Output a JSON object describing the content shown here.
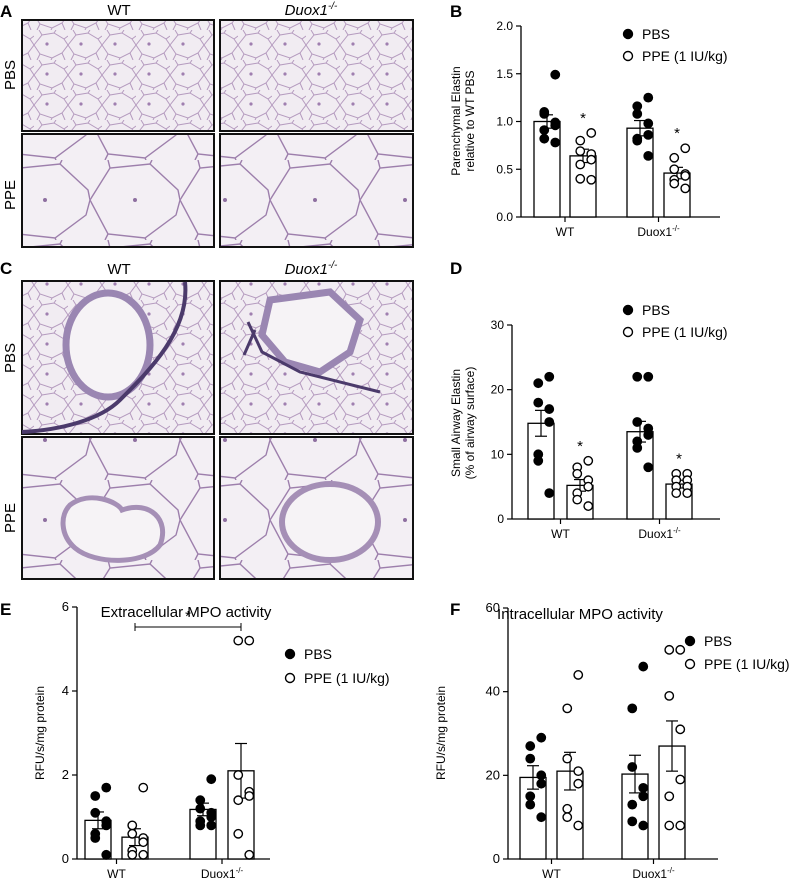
{
  "panels": {
    "A": {
      "letter": "A",
      "col1": "WT",
      "col2_main": "Duox1",
      "col2_sup": "-/-",
      "row1": "PBS",
      "row2": "PPE"
    },
    "C": {
      "letter": "C",
      "col1": "WT",
      "col2_main": "Duox1",
      "col2_sup": "-/-",
      "row1": "PBS",
      "row2": "PPE"
    }
  },
  "chart_data": [
    {
      "panel": "B",
      "type": "bar",
      "ylabel": "Parenchymal Elastin\nrelative to WT PBS",
      "ylim": [
        0,
        2.0
      ],
      "yticks": [
        "0.0",
        "0.5",
        "1.0",
        "1.5",
        "2.0"
      ],
      "groups": [
        {
          "main": "WT",
          "sup": ""
        },
        {
          "main": "Duox1",
          "sup": "-/-"
        }
      ],
      "legend": [
        "PBS",
        "PPE (1 IU/kg)"
      ],
      "series": [
        {
          "name": "PBS",
          "means": [
            1.0,
            0.93
          ],
          "sems": [
            0.07,
            0.08
          ],
          "points": [
            [
              1.49,
              1.1,
              1.08,
              0.99,
              0.96,
              0.91,
              0.82,
              0.78
            ],
            [
              1.25,
              1.16,
              1.08,
              0.98,
              0.86,
              0.82,
              0.8,
              0.64
            ]
          ]
        },
        {
          "name": "PPE (1 IU/kg)",
          "means": [
            0.64,
            0.46
          ],
          "sems": [
            0.07,
            0.06
          ],
          "points": [
            [
              0.88,
              0.8,
              0.69,
              0.66,
              0.6,
              0.55,
              0.4,
              0.39
            ],
            [
              0.72,
              0.62,
              0.5,
              0.45,
              0.43,
              0.39,
              0.35,
              0.3
            ]
          ]
        }
      ],
      "significance": [
        "*",
        "*"
      ]
    },
    {
      "panel": "D",
      "type": "bar",
      "ylabel": "Small Airway Elastin\n(% of airway surface)",
      "ylim": [
        0,
        30
      ],
      "yticks": [
        "0",
        "10",
        "20",
        "30"
      ],
      "groups": [
        {
          "main": "WT",
          "sup": ""
        },
        {
          "main": "Duox1",
          "sup": "-/-"
        }
      ],
      "legend": [
        "PBS",
        "PPE (1 IU/kg)"
      ],
      "series": [
        {
          "name": "PBS",
          "means": [
            14.8,
            13.5
          ],
          "sems": [
            2.0,
            1.6
          ],
          "points": [
            [
              22,
              21,
              18,
              17,
              15,
              10,
              9,
              4
            ],
            [
              22,
              22,
              15,
              14,
              13,
              12,
              11,
              8
            ]
          ]
        },
        {
          "name": "PPE (1 IU/kg)",
          "means": [
            5.2,
            5.4
          ],
          "sems": [
            0.9,
            0.6
          ],
          "points": [
            [
              9,
              8,
              7,
              6,
              5,
              4,
              3,
              2
            ],
            [
              7,
              7,
              6,
              6,
              5,
              5,
              4,
              4
            ]
          ]
        }
      ],
      "significance": [
        "*",
        "*"
      ]
    },
    {
      "panel": "E",
      "type": "bar",
      "title": "Extracellular MPO activity",
      "ylabel": "RFU/s/mg protein",
      "ylim": [
        0,
        6
      ],
      "yticks": [
        "0",
        "2",
        "4",
        "6"
      ],
      "groups": [
        {
          "main": "WT",
          "sup": ""
        },
        {
          "main": "Duox1",
          "sup": "-/-"
        }
      ],
      "legend": [
        "PBS",
        "PPE (1 IU/kg)"
      ],
      "series": [
        {
          "name": "PBS",
          "means": [
            0.92,
            1.18
          ],
          "sems": [
            0.2,
            0.15
          ],
          "points": [
            [
              1.7,
              1.5,
              1.1,
              0.9,
              0.8,
              0.6,
              0.5,
              0.1
            ],
            [
              1.9,
              1.4,
              1.2,
              1.1,
              1.0,
              0.9,
              0.8,
              0.8
            ]
          ]
        },
        {
          "name": "PPE (1 IU/kg)",
          "means": [
            0.52,
            2.1
          ],
          "sems": [
            0.2,
            0.65
          ],
          "points": [
            [
              1.7,
              0.8,
              0.6,
              0.5,
              0.4,
              0.2,
              0.1,
              0.1
            ],
            [
              5.2,
              5.2,
              2.0,
              1.6,
              1.5,
              1.4,
              0.6,
              0.1
            ]
          ]
        }
      ],
      "bracket": {
        "from": "WT PPE",
        "to": "Duox1 PPE",
        "label": "*"
      }
    },
    {
      "panel": "F",
      "type": "bar",
      "title": "Intracellular MPO activity",
      "ylabel": "RFU/s/mg protein",
      "ylim": [
        0,
        60
      ],
      "yticks": [
        "0",
        "20",
        "40",
        "60"
      ],
      "groups": [
        {
          "main": "WT",
          "sup": ""
        },
        {
          "main": "Duox1",
          "sup": "-/-"
        }
      ],
      "legend": [
        "PBS",
        "PPE (1 IU/kg)"
      ],
      "series": [
        {
          "name": "PBS",
          "means": [
            19.5,
            20.3
          ],
          "sems": [
            2.8,
            4.5
          ],
          "points": [
            [
              29,
              27,
              24,
              20,
              18,
              15,
              13,
              10
            ],
            [
              46,
              36,
              22,
              17,
              15,
              13,
              9,
              8
            ]
          ]
        },
        {
          "name": "PPE (1 IU/kg)",
          "means": [
            21,
            27
          ],
          "sems": [
            4.5,
            6
          ],
          "points": [
            [
              44,
              36,
              24,
              21,
              18,
              12,
              10,
              8
            ],
            [
              50,
              50,
              39,
              31,
              19,
              15,
              8,
              8
            ]
          ]
        }
      ]
    }
  ]
}
